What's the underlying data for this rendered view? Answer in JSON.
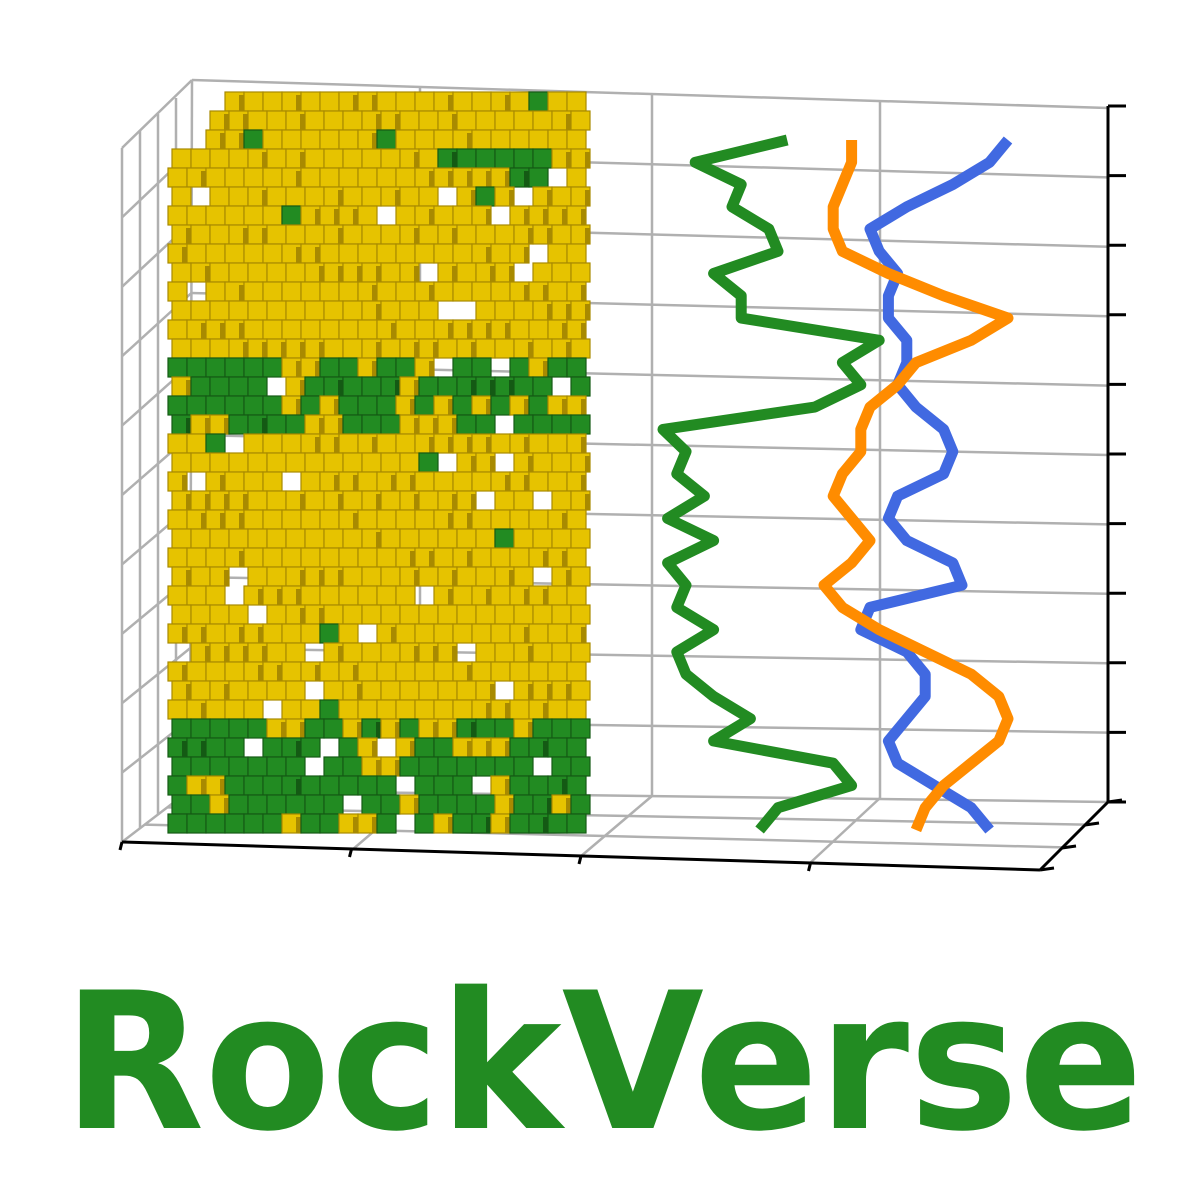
{
  "logo": {
    "wordmark": "RockVerse",
    "colors": {
      "wordmark": "#228b22",
      "grain": "#e6c300",
      "grain_dark": "#a88a00",
      "pore": "#228b22",
      "pore_dark": "#145a14",
      "grid": "#b0b0b0",
      "axis": "#000000",
      "curve_porosity": "#228b22",
      "curve_blue": "#4169e1",
      "curve_orange": "#ff8c00"
    }
  },
  "chart_data": {
    "type": "line",
    "title": "",
    "xlabel": "",
    "ylabel": "",
    "grid": true,
    "series": [
      {
        "color": "#228b22",
        "x": [
          0.32,
          0.12,
          0.22,
          0.2,
          0.28,
          0.3,
          0.16,
          0.22,
          0.22,
          0.52,
          0.44,
          0.48,
          0.38,
          0.05,
          0.1,
          0.08,
          0.14,
          0.06,
          0.16,
          0.06,
          0.1,
          0.08,
          0.16,
          0.08,
          0.1,
          0.16,
          0.24,
          0.16,
          0.42,
          0.46,
          0.3,
          0.26
        ],
        "y": [
          32,
          31,
          30,
          29,
          28,
          27,
          26,
          25,
          24,
          23,
          22,
          21,
          20,
          19,
          18,
          17,
          16,
          15,
          14,
          13,
          12,
          11,
          10,
          9,
          8,
          7,
          6,
          5,
          4,
          3,
          2,
          1
        ]
      },
      {
        "color": "#4169e1",
        "x": [
          0.8,
          0.76,
          0.68,
          0.58,
          0.5,
          0.52,
          0.56,
          0.54,
          0.54,
          0.58,
          0.58,
          0.56,
          0.6,
          0.66,
          0.68,
          0.66,
          0.56,
          0.54,
          0.58,
          0.68,
          0.7,
          0.5,
          0.48,
          0.58,
          0.62,
          0.62,
          0.58,
          0.54,
          0.56,
          0.64,
          0.72,
          0.76
        ],
        "y": [
          32,
          31,
          30,
          29,
          28,
          27,
          26,
          25,
          24,
          23,
          22,
          21,
          20,
          19,
          18,
          17,
          16,
          15,
          14,
          13,
          12,
          11,
          10,
          9,
          8,
          7,
          6,
          5,
          4,
          3,
          2,
          1
        ]
      },
      {
        "color": "#ff8c00",
        "x": [
          0.46,
          0.46,
          0.44,
          0.42,
          0.42,
          0.44,
          0.54,
          0.66,
          0.8,
          0.72,
          0.6,
          0.56,
          0.5,
          0.48,
          0.48,
          0.44,
          0.42,
          0.46,
          0.5,
          0.46,
          0.4,
          0.44,
          0.52,
          0.62,
          0.72,
          0.78,
          0.8,
          0.78,
          0.72,
          0.66,
          0.62,
          0.6
        ],
        "y": [
          32,
          31,
          30,
          29,
          28,
          27,
          26,
          25,
          24,
          23,
          22,
          21,
          20,
          19,
          18,
          17,
          16,
          15,
          14,
          13,
          12,
          11,
          10,
          9,
          8,
          7,
          6,
          5,
          4,
          3,
          2,
          1
        ]
      }
    ]
  }
}
